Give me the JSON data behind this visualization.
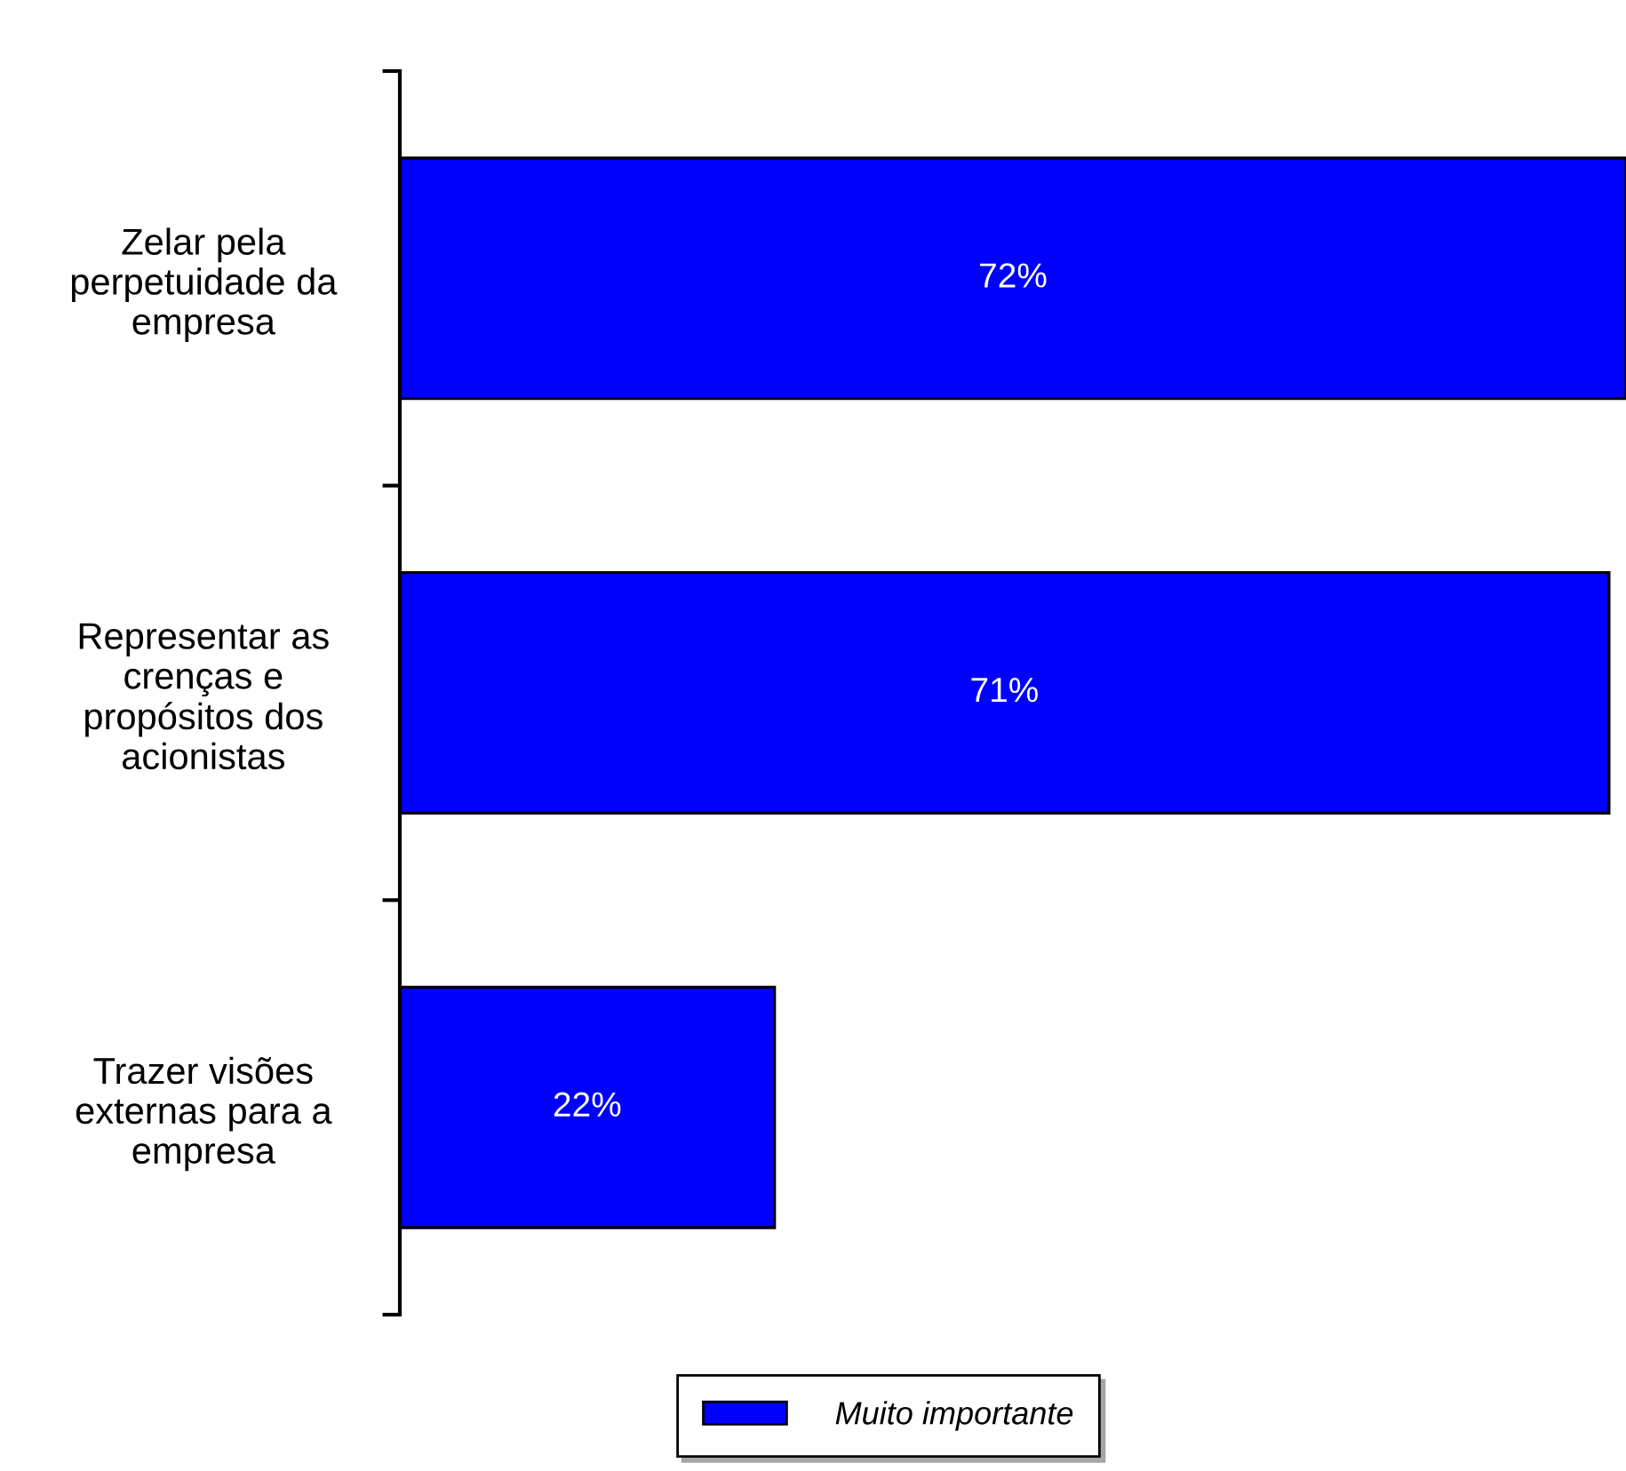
{
  "chart_data": {
    "type": "bar",
    "orientation": "horizontal",
    "categories": [
      "Zelar pela\nperpetuidade da\nempresa",
      "Representar as\ncrenças e\npropósitos dos\nacionistas",
      "Trazer visões\nexternas para a\nempresa"
    ],
    "series": [
      {
        "name": "Muito importante",
        "color": "#0000ff",
        "values": [
          72,
          71,
          22
        ],
        "value_labels": [
          "72%",
          "71%",
          "22%"
        ]
      }
    ],
    "legend": "bottom",
    "grid": false
  }
}
